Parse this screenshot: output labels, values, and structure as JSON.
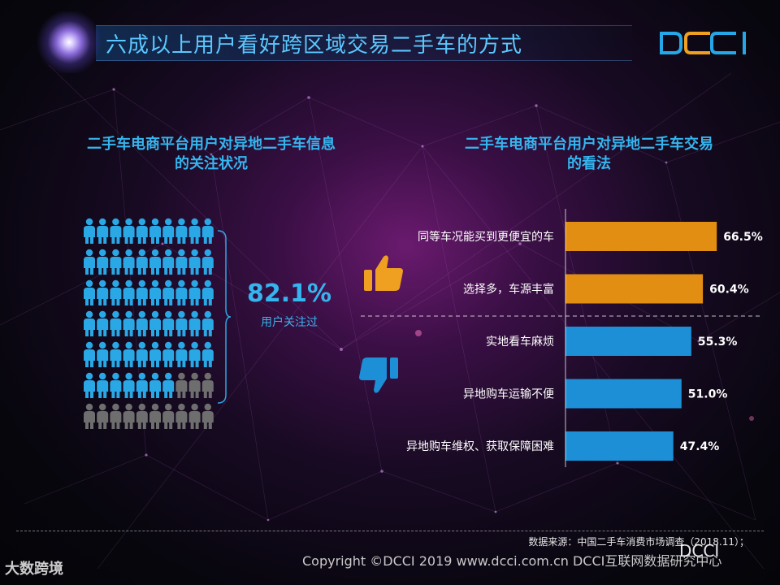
{
  "header": {
    "title": "六成以上用户看好跨区域交易二手车的方式",
    "logo_text": "DCCI",
    "accent_color": "#35b5ee",
    "logo_colors": [
      "#25a8e8",
      "#f0a020"
    ]
  },
  "left_panel": {
    "title_line1": "二手车电商平台用户对异地二手车信息",
    "title_line2": "的关注状况",
    "percent": "82.1%",
    "percent_label": "用户关注过",
    "icon_grid": {
      "total": 70,
      "highlighted": 57,
      "highlight_color": "#2aa8e6",
      "base_color": "#6e6e6e"
    }
  },
  "right_panel": {
    "title_line1": "二手车电商平台用户对异地二手车交易",
    "title_line2": "的看法",
    "positive_icon": "thumbs-up-icon",
    "negative_icon": "thumbs-down-icon"
  },
  "chart_data": {
    "type": "bar",
    "orientation": "horizontal",
    "categories": [
      "同等车况能买到更便宜的车",
      "选择多，车源丰富",
      "实地看车麻烦",
      "异地购车运输不便",
      "异地购车维权、获取保障困难"
    ],
    "values": [
      66.5,
      60.4,
      55.3,
      51.0,
      47.4
    ],
    "value_labels": [
      "66.5%",
      "60.4%",
      "55.3%",
      "51.0%",
      "47.4%"
    ],
    "groups": [
      "positive",
      "positive",
      "negative",
      "negative",
      "negative"
    ],
    "colors": {
      "positive": "#e28e12",
      "negative": "#1c8fd6"
    },
    "xlim": [
      0,
      100
    ]
  },
  "footer": {
    "source": "数据来源：中国二手车消费市场调查（2018.11）；",
    "copyright": "Copyright ©DCCI 2019  www.dcci.com.cn   DCCI互联网数据研究中心",
    "watermark_left": "大数跨境",
    "watermark_right": "DCCI"
  }
}
